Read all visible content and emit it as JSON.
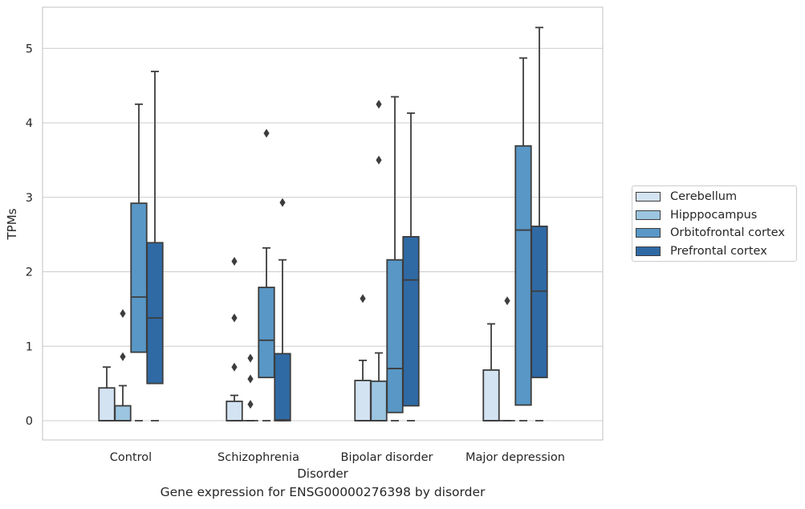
{
  "chart_data": {
    "type": "boxplot",
    "xlabel": "Disorder",
    "ylabel": "TPMs",
    "caption": "Gene expression for ENSG00000276398 by disorder",
    "ylim": [
      -0.25,
      5.55
    ],
    "yticks": [
      0,
      1,
      2,
      3,
      4,
      5
    ],
    "grid": true,
    "legend_position": "right",
    "categories": [
      "Control",
      "Schizophrenia",
      "Bipolar disorder",
      "Major depression"
    ],
    "series": [
      {
        "name": "Cerebellum",
        "color": "#d3e3f2",
        "boxes": [
          {
            "min": 0,
            "q1": 0,
            "median": 0,
            "q3": 0.44,
            "max": 0.72,
            "outliers": []
          },
          {
            "min": 0,
            "q1": 0,
            "median": 0,
            "q3": 0.26,
            "max": 0.34,
            "outliers": [
              0.72,
              1.38,
              2.14
            ]
          },
          {
            "min": 0,
            "q1": 0,
            "median": 0,
            "q3": 0.54,
            "max": 0.81,
            "outliers": [
              1.64
            ]
          },
          {
            "min": 0,
            "q1": 0,
            "median": 0,
            "q3": 0.68,
            "max": 1.3,
            "outliers": []
          }
        ]
      },
      {
        "name": "Hipppocampus",
        "color": "#9bc5e0",
        "boxes": [
          {
            "min": 0,
            "q1": 0,
            "median": 0,
            "q3": 0.2,
            "max": 0.47,
            "outliers": [
              0.86,
              1.44
            ]
          },
          {
            "min": 0,
            "q1": 0,
            "median": 0,
            "q3": 0,
            "max": 0,
            "outliers": [
              0.22,
              0.56,
              0.84
            ]
          },
          {
            "min": 0,
            "q1": 0,
            "median": 0,
            "q3": 0.53,
            "max": 0.91,
            "outliers": [
              3.5,
              4.25
            ]
          },
          {
            "min": 0,
            "q1": 0,
            "median": 0,
            "q3": 0,
            "max": 0,
            "outliers": [
              1.61
            ]
          }
        ]
      },
      {
        "name": "Orbitofrontal cortex",
        "color": "#5897c6",
        "boxes": [
          {
            "min": 0,
            "q1": 0.92,
            "median": 1.66,
            "q3": 2.92,
            "max": 4.25,
            "outliers": []
          },
          {
            "min": 0,
            "q1": 0.58,
            "median": 1.08,
            "q3": 1.79,
            "max": 2.32,
            "outliers": [
              3.86
            ]
          },
          {
            "min": 0,
            "q1": 0.11,
            "median": 0.7,
            "q3": 2.16,
            "max": 4.35,
            "outliers": []
          },
          {
            "min": 0,
            "q1": 0.21,
            "median": 2.56,
            "q3": 3.69,
            "max": 4.87,
            "outliers": []
          }
        ]
      },
      {
        "name": "Prefrontal cortex",
        "color": "#2f6aa5",
        "boxes": [
          {
            "min": 0,
            "q1": 0.5,
            "median": 1.38,
            "q3": 2.39,
            "max": 4.69,
            "outliers": []
          },
          {
            "min": 0,
            "q1": 0,
            "median": 0.01,
            "q3": 0.9,
            "max": 2.16,
            "outliers": [
              2.93
            ]
          },
          {
            "min": 0,
            "q1": 0.2,
            "median": 1.89,
            "q3": 2.47,
            "max": 4.13,
            "outliers": []
          },
          {
            "min": 0,
            "q1": 0.58,
            "median": 1.74,
            "q3": 2.61,
            "max": 5.28,
            "outliers": []
          }
        ]
      }
    ]
  }
}
